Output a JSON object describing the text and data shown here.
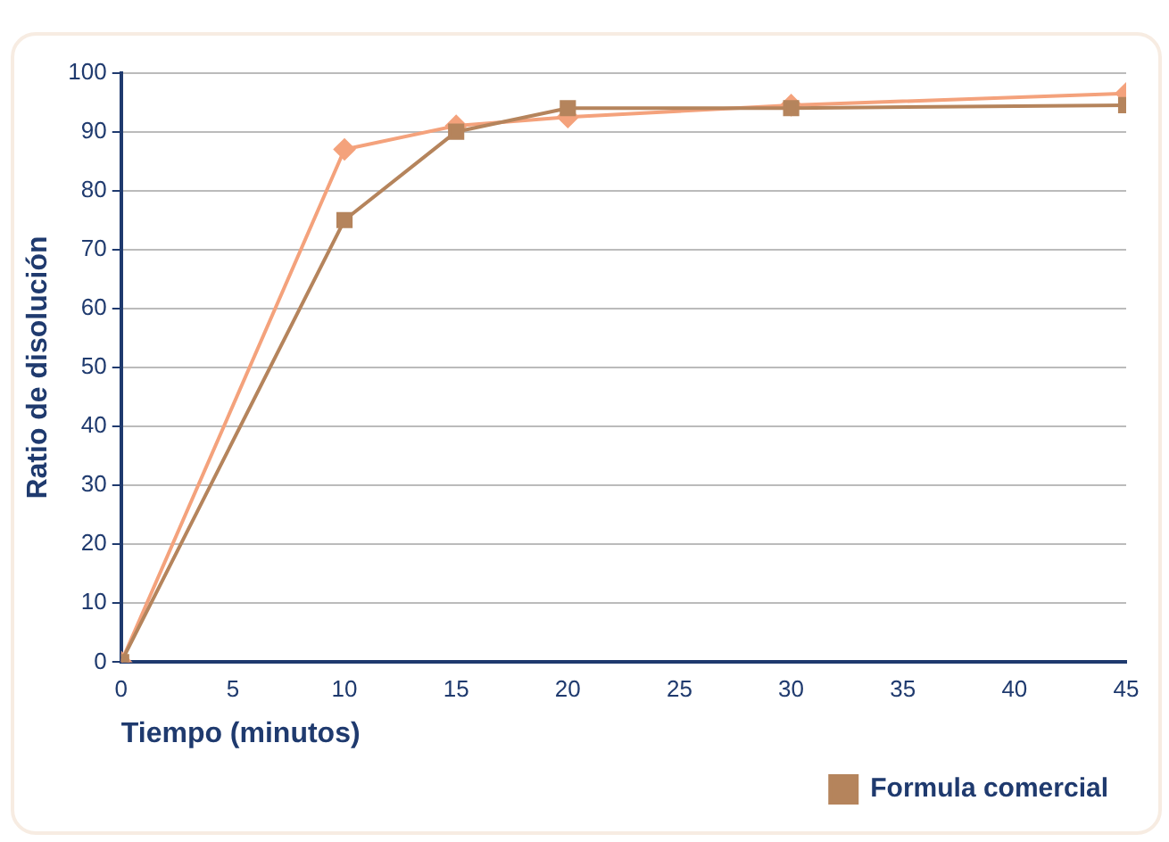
{
  "chart_data": {
    "type": "line",
    "xlabel": "Tiempo (minutos)",
    "ylabel": "Ratio de disolución",
    "x": [
      0,
      10,
      15,
      20,
      30,
      45
    ],
    "series": [
      {
        "color": "#f4a27c",
        "marker": "diamond",
        "values": [
          0,
          87,
          91,
          92.5,
          94.5,
          96.5
        ]
      },
      {
        "name": "Formula comercial",
        "color": "#b5845c",
        "marker": "square",
        "values": [
          0,
          75,
          90,
          94,
          94,
          94.5
        ]
      }
    ],
    "xlim": [
      0,
      45
    ],
    "xticks": [
      0,
      5,
      10,
      15,
      20,
      25,
      30,
      35,
      40,
      45
    ],
    "ylim": [
      0,
      100
    ],
    "yticks": [
      0,
      10,
      20,
      30,
      40,
      50,
      60,
      70,
      80,
      90,
      100
    ],
    "grid": "y",
    "legend": "bottom right"
  }
}
